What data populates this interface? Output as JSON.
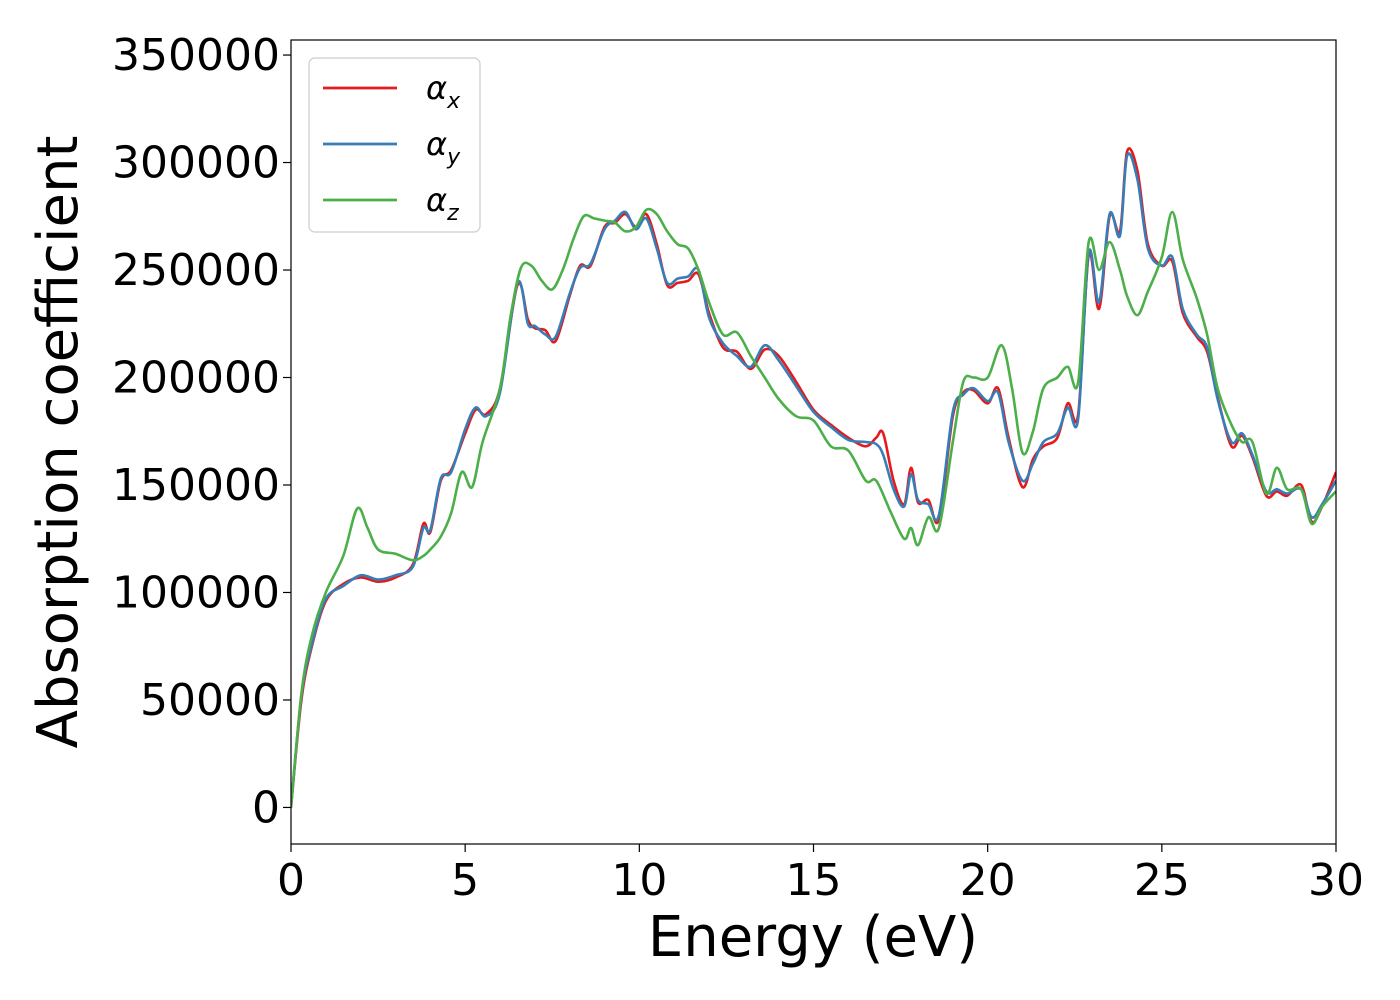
{
  "chart_data": {
    "type": "line",
    "title": "",
    "xlabel": "Energy (eV)",
    "ylabel": "Absorption coefficient",
    "xlim": [
      0,
      30
    ],
    "ylim": [
      -17000,
      357000
    ],
    "xticks": [
      0,
      5,
      10,
      15,
      20,
      25,
      30
    ],
    "xtick_labels": [
      "0",
      "5",
      "10",
      "15",
      "20",
      "25",
      "30"
    ],
    "yticks": [
      0,
      50000,
      100000,
      150000,
      200000,
      250000,
      300000,
      350000
    ],
    "ytick_labels": [
      "0",
      "50000",
      "100000",
      "150000",
      "200000",
      "250000",
      "300000",
      "350000"
    ],
    "grid": false,
    "legend_placement": "upper-left",
    "series": [
      {
        "name": "α_x",
        "legend_base": "α",
        "legend_sub": "x",
        "color": "#e41a1c",
        "x": [
          0,
          0.3,
          0.6,
          1.0,
          1.5,
          2.0,
          2.5,
          3.0,
          3.5,
          3.8,
          4.0,
          4.3,
          4.6,
          5.0,
          5.3,
          5.6,
          6.0,
          6.5,
          6.8,
          7.0,
          7.3,
          7.6,
          8.0,
          8.3,
          8.6,
          9.0,
          9.3,
          9.6,
          9.9,
          10.2,
          10.5,
          10.8,
          11.1,
          11.4,
          11.7,
          12.0,
          12.4,
          12.8,
          13.2,
          13.6,
          14.0,
          14.5,
          15.0,
          15.5,
          16.0,
          16.5,
          16.8,
          17.0,
          17.3,
          17.6,
          17.8,
          18.0,
          18.3,
          18.6,
          19.0,
          19.3,
          19.6,
          20.0,
          20.3,
          20.6,
          21.0,
          21.3,
          21.6,
          22.0,
          22.3,
          22.6,
          22.9,
          23.2,
          23.5,
          23.8,
          24.0,
          24.3,
          24.6,
          25.0,
          25.3,
          25.6,
          26.0,
          26.3,
          26.6,
          27.0,
          27.3,
          27.6,
          28.0,
          28.3,
          28.6,
          29.0,
          29.3,
          29.6,
          30.0
        ],
        "values": [
          0,
          50000,
          75000,
          96000,
          104000,
          107000,
          105000,
          107000,
          113000,
          132000,
          128000,
          152000,
          157000,
          174000,
          185000,
          183000,
          195000,
          243000,
          227000,
          223000,
          222000,
          217000,
          238000,
          252000,
          252000,
          270000,
          272000,
          276000,
          270000,
          276000,
          262000,
          243000,
          244000,
          245000,
          248000,
          230000,
          214000,
          212000,
          204000,
          213000,
          210000,
          198000,
          185000,
          178000,
          172000,
          168000,
          172000,
          174000,
          152000,
          141000,
          158000,
          142000,
          143000,
          134000,
          182000,
          193000,
          194000,
          188000,
          195000,
          172000,
          149000,
          162000,
          168000,
          172000,
          188000,
          183000,
          257000,
          232000,
          275000,
          268000,
          305000,
          296000,
          262000,
          252000,
          254000,
          230000,
          219000,
          212000,
          191000,
          168000,
          173000,
          163000,
          145000,
          147000,
          145000,
          150000,
          133000,
          140000,
          156000
        ]
      },
      {
        "name": "α_y",
        "legend_base": "α",
        "legend_sub": "y",
        "color": "#377eb8",
        "x": [
          0,
          0.3,
          0.6,
          1.0,
          1.5,
          2.0,
          2.5,
          3.0,
          3.5,
          3.8,
          4.0,
          4.3,
          4.6,
          5.0,
          5.3,
          5.6,
          6.0,
          6.5,
          6.8,
          7.0,
          7.3,
          7.6,
          8.0,
          8.3,
          8.6,
          9.0,
          9.3,
          9.6,
          9.9,
          10.2,
          10.5,
          10.8,
          11.1,
          11.4,
          11.7,
          12.0,
          12.4,
          12.8,
          13.2,
          13.6,
          14.0,
          14.5,
          15.0,
          15.5,
          16.0,
          16.5,
          16.8,
          17.0,
          17.3,
          17.6,
          17.8,
          18.0,
          18.3,
          18.6,
          19.0,
          19.3,
          19.6,
          20.0,
          20.3,
          20.6,
          21.0,
          21.3,
          21.6,
          22.0,
          22.3,
          22.6,
          22.9,
          23.2,
          23.5,
          23.8,
          24.0,
          24.3,
          24.6,
          25.0,
          25.3,
          25.6,
          26.0,
          26.3,
          26.6,
          27.0,
          27.3,
          27.6,
          28.0,
          28.3,
          28.6,
          29.0,
          29.3,
          29.6,
          30.0
        ],
        "values": [
          0,
          52000,
          76000,
          97000,
          103000,
          108000,
          106000,
          108000,
          112000,
          130000,
          129000,
          153000,
          156000,
          176000,
          186000,
          182000,
          193000,
          244000,
          225000,
          224000,
          220000,
          219000,
          239000,
          251000,
          253000,
          269000,
          273000,
          277000,
          269000,
          274000,
          260000,
          244000,
          246000,
          247000,
          250000,
          228000,
          216000,
          210000,
          205000,
          215000,
          208000,
          196000,
          184000,
          177000,
          171000,
          170000,
          169000,
          164000,
          148000,
          140000,
          155000,
          143000,
          141000,
          136000,
          184000,
          192000,
          195000,
          189000,
          193000,
          170000,
          152000,
          160000,
          170000,
          174000,
          186000,
          181000,
          258000,
          235000,
          276000,
          266000,
          303000,
          292000,
          260000,
          252000,
          256000,
          232000,
          220000,
          214000,
          190000,
          170000,
          174000,
          164000,
          147000,
          148000,
          146000,
          148000,
          135000,
          141000,
          152000
        ]
      },
      {
        "name": "α_z",
        "legend_base": "α",
        "legend_sub": "z",
        "color": "#4daf4a",
        "x": [
          0,
          0.3,
          0.6,
          1.0,
          1.5,
          1.9,
          2.2,
          2.5,
          3.0,
          3.5,
          3.8,
          4.0,
          4.3,
          4.6,
          4.9,
          5.2,
          5.5,
          6.0,
          6.3,
          6.6,
          6.9,
          7.2,
          7.5,
          7.8,
          8.1,
          8.4,
          8.7,
          9.0,
          9.3,
          9.6,
          9.9,
          10.2,
          10.5,
          10.8,
          11.1,
          11.4,
          11.7,
          12.0,
          12.4,
          12.8,
          13.2,
          13.6,
          14.0,
          14.5,
          15.0,
          15.5,
          16.0,
          16.5,
          16.8,
          17.2,
          17.6,
          17.8,
          18.0,
          18.3,
          18.6,
          19.0,
          19.3,
          19.6,
          20.0,
          20.4,
          20.7,
          21.0,
          21.3,
          21.6,
          22.0,
          22.3,
          22.6,
          22.9,
          23.2,
          23.5,
          23.8,
          24.0,
          24.3,
          24.6,
          25.0,
          25.3,
          25.6,
          26.0,
          26.3,
          26.6,
          27.0,
          27.3,
          27.6,
          28.0,
          28.3,
          28.6,
          29.0,
          29.3,
          29.6,
          30.0
        ],
        "values": [
          0,
          53000,
          80000,
          100000,
          117000,
          139000,
          130000,
          120000,
          118000,
          115000,
          117000,
          120000,
          126000,
          137000,
          156000,
          149000,
          170000,
          195000,
          228000,
          251000,
          252000,
          245000,
          241000,
          250000,
          264000,
          275000,
          274000,
          273000,
          272000,
          268000,
          270000,
          278000,
          276000,
          268000,
          262000,
          260000,
          250000,
          235000,
          220000,
          221000,
          210000,
          200000,
          190000,
          182000,
          180000,
          168000,
          166000,
          152000,
          152000,
          138000,
          125000,
          130000,
          122000,
          135000,
          130000,
          170000,
          198000,
          200000,
          200000,
          215000,
          195000,
          165000,
          175000,
          195000,
          200000,
          205000,
          198000,
          263000,
          250000,
          263000,
          250000,
          238000,
          229000,
          240000,
          256000,
          277000,
          255000,
          237000,
          220000,
          195000,
          178000,
          170000,
          170000,
          146000,
          158000,
          148000,
          148000,
          132000,
          140000,
          147000
        ]
      }
    ]
  }
}
